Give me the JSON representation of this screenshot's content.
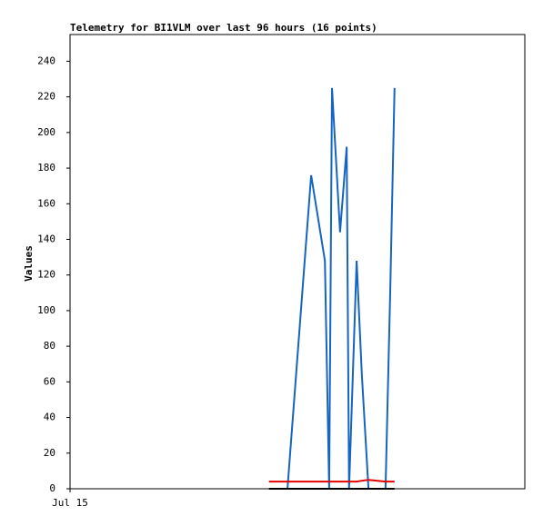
{
  "chart_data": {
    "type": "line",
    "title": "Telemetry for BI1VLM over last 96 hours (16 points)",
    "y_label": "Values",
    "x": [
      42.0,
      45.9,
      50.9,
      53.8,
      54.7,
      55.3,
      57.0,
      58.4,
      58.9,
      60.5,
      61.6,
      63.0,
      64.7,
      66.6,
      67.6,
      68.5
    ],
    "series": [
      {
        "name": "blue",
        "color": "#1565c0",
        "values": [
          0,
          0,
          176,
          128,
          0,
          225,
          144,
          192,
          0,
          128,
          64,
          0,
          0,
          0,
          112,
          225
        ]
      },
      {
        "name": "red",
        "color": "#e00000",
        "values": [
          4,
          4,
          4,
          4,
          4,
          4,
          4,
          4,
          4,
          4,
          4.5,
          5,
          4.5,
          4,
          4,
          4
        ]
      },
      {
        "name": "black",
        "color": "#000000",
        "values": [
          0,
          0,
          0,
          0,
          0,
          0,
          0,
          0,
          0,
          0,
          0,
          0,
          0,
          0,
          0,
          0
        ]
      }
    ],
    "xlim": [
      0,
      96
    ],
    "xticks": [
      {
        "value": 0,
        "label": "Jul 15"
      }
    ],
    "ylim": [
      0,
      255
    ],
    "yticks": [
      0,
      20,
      40,
      60,
      80,
      100,
      120,
      140,
      160,
      180,
      200,
      220,
      240
    ],
    "grid": false
  }
}
